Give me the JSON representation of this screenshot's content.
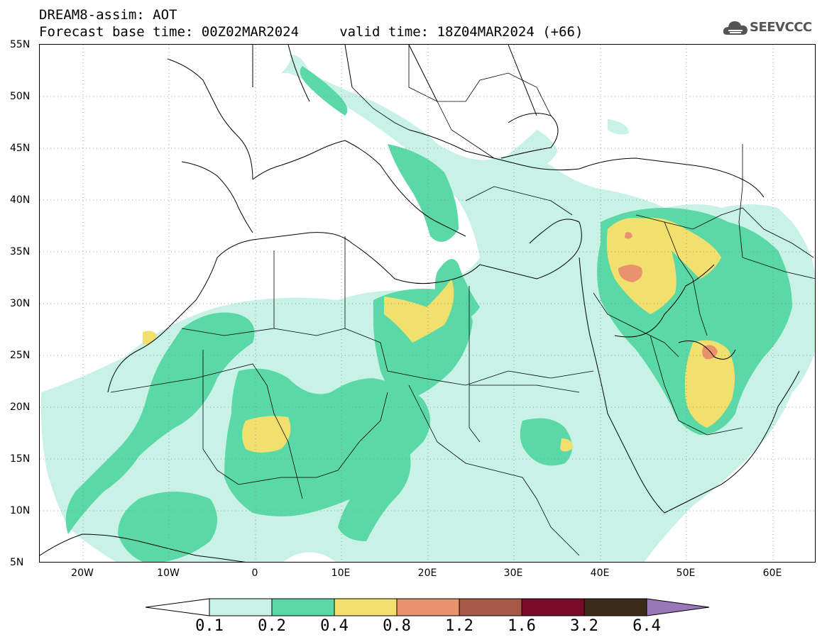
{
  "header": {
    "title_line1": "DREAM8-assim: AOT",
    "title_line2": "Forecast base time: 00Z02MAR2024     valid time: 18Z04MAR2024 (+66)"
  },
  "logo": {
    "text": "SEEVCCC",
    "icon": "cloud-icon"
  },
  "map": {
    "lat_labels": [
      "55N",
      "50N",
      "45N",
      "40N",
      "35N",
      "30N",
      "25N",
      "20N",
      "15N",
      "10N",
      "5N"
    ],
    "lon_labels": [
      "20W",
      "10W",
      "0",
      "10E",
      "20E",
      "30E",
      "40E",
      "50E",
      "60E"
    ],
    "extent": {
      "lon_min": -25,
      "lon_max": 65,
      "lat_min": 5,
      "lat_max": 55
    },
    "grid": "dotted"
  },
  "legend": {
    "labels": [
      "0.1",
      "0.2",
      "0.4",
      "0.8",
      "1.2",
      "1.6",
      "3.2",
      "6.4"
    ],
    "colors": [
      "#ffffff",
      "#c8f2e6",
      "#5ad9a6",
      "#f2e06e",
      "#e8926e",
      "#a85848",
      "#7a0a2a",
      "#3c2a1a",
      "#9a78b8"
    ]
  }
}
